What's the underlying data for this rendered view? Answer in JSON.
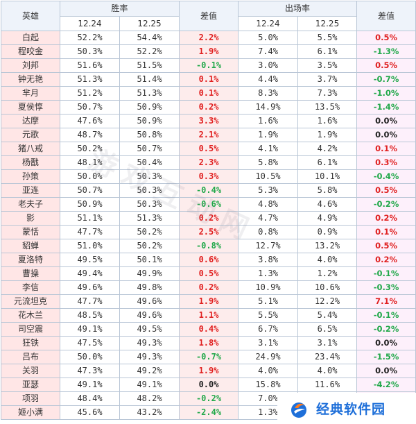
{
  "headers": {
    "hero": "英雄",
    "winrate": "胜率",
    "winrate_diff": "差值",
    "pickrate": "出场率",
    "pickrate_diff": "差值",
    "date1": "12.24",
    "date2": "12.25"
  },
  "rows": [
    {
      "name": "白起",
      "w1": "52.2%",
      "w2": "54.4%",
      "wd": "2.2%",
      "ws": "pos",
      "p1": "5.0%",
      "p2": "5.5%",
      "pd": "0.5%",
      "ps": "pos"
    },
    {
      "name": "程咬金",
      "w1": "50.3%",
      "w2": "52.2%",
      "wd": "1.9%",
      "ws": "pos",
      "p1": "7.4%",
      "p2": "6.1%",
      "pd": "-1.3%",
      "ps": "neg"
    },
    {
      "name": "刘邦",
      "w1": "51.6%",
      "w2": "51.5%",
      "wd": "-0.1%",
      "ws": "neg",
      "p1": "3.0%",
      "p2": "3.5%",
      "pd": "0.5%",
      "ps": "pos"
    },
    {
      "name": "钟无艳",
      "w1": "51.3%",
      "w2": "51.4%",
      "wd": "0.1%",
      "ws": "pos",
      "p1": "4.4%",
      "p2": "3.7%",
      "pd": "-0.7%",
      "ps": "neg"
    },
    {
      "name": "芈月",
      "w1": "51.2%",
      "w2": "51.3%",
      "wd": "0.1%",
      "ws": "pos",
      "p1": "8.3%",
      "p2": "7.3%",
      "pd": "-1.0%",
      "ps": "neg"
    },
    {
      "name": "夏侯惇",
      "w1": "50.7%",
      "w2": "50.9%",
      "wd": "0.2%",
      "ws": "pos",
      "p1": "14.9%",
      "p2": "13.5%",
      "pd": "-1.4%",
      "ps": "neg"
    },
    {
      "name": "达摩",
      "w1": "47.6%",
      "w2": "50.9%",
      "wd": "3.3%",
      "ws": "pos",
      "p1": "1.6%",
      "p2": "1.6%",
      "pd": "0.0%",
      "ps": "zero"
    },
    {
      "name": "元歌",
      "w1": "48.7%",
      "w2": "50.8%",
      "wd": "2.1%",
      "ws": "pos",
      "p1": "1.9%",
      "p2": "1.9%",
      "pd": "0.0%",
      "ps": "zero"
    },
    {
      "name": "猪八戒",
      "w1": "50.2%",
      "w2": "50.7%",
      "wd": "0.5%",
      "ws": "pos",
      "p1": "4.1%",
      "p2": "4.2%",
      "pd": "0.1%",
      "ps": "pos"
    },
    {
      "name": "杨戬",
      "w1": "48.1%",
      "w2": "50.4%",
      "wd": "2.3%",
      "ws": "pos",
      "p1": "5.8%",
      "p2": "6.1%",
      "pd": "0.3%",
      "ps": "pos"
    },
    {
      "name": "孙策",
      "w1": "50.0%",
      "w2": "50.3%",
      "wd": "0.3%",
      "ws": "pos",
      "p1": "10.5%",
      "p2": "10.1%",
      "pd": "-0.4%",
      "ps": "neg"
    },
    {
      "name": "亚连",
      "w1": "50.7%",
      "w2": "50.3%",
      "wd": "-0.4%",
      "ws": "neg",
      "p1": "5.3%",
      "p2": "5.8%",
      "pd": "0.5%",
      "ps": "pos"
    },
    {
      "name": "老夫子",
      "w1": "50.9%",
      "w2": "50.3%",
      "wd": "-0.6%",
      "ws": "neg",
      "p1": "4.8%",
      "p2": "4.6%",
      "pd": "-0.2%",
      "ps": "neg"
    },
    {
      "name": "影",
      "w1": "51.1%",
      "w2": "51.3%",
      "wd": "0.2%",
      "ws": "pos",
      "p1": "4.7%",
      "p2": "4.9%",
      "pd": "0.2%",
      "ps": "pos"
    },
    {
      "name": "蒙恬",
      "w1": "47.7%",
      "w2": "50.2%",
      "wd": "2.5%",
      "ws": "pos",
      "p1": "0.8%",
      "p2": "0.9%",
      "pd": "0.1%",
      "ps": "pos"
    },
    {
      "name": "貂蝉",
      "w1": "51.0%",
      "w2": "50.2%",
      "wd": "-0.8%",
      "ws": "neg",
      "p1": "12.7%",
      "p2": "13.2%",
      "pd": "0.5%",
      "ps": "pos"
    },
    {
      "name": "夏洛特",
      "w1": "49.5%",
      "w2": "50.1%",
      "wd": "0.6%",
      "ws": "pos",
      "p1": "3.8%",
      "p2": "4.0%",
      "pd": "0.2%",
      "ps": "pos"
    },
    {
      "name": "曹操",
      "w1": "49.4%",
      "w2": "49.9%",
      "wd": "0.5%",
      "ws": "pos",
      "p1": "1.3%",
      "p2": "1.2%",
      "pd": "-0.1%",
      "ps": "neg"
    },
    {
      "name": "李信",
      "w1": "49.6%",
      "w2": "49.8%",
      "wd": "0.2%",
      "ws": "pos",
      "p1": "10.9%",
      "p2": "10.6%",
      "pd": "-0.3%",
      "ps": "neg"
    },
    {
      "name": "元流坦克",
      "w1": "47.7%",
      "w2": "49.6%",
      "wd": "1.9%",
      "ws": "pos",
      "p1": "5.1%",
      "p2": "12.2%",
      "pd": "7.1%",
      "ps": "pos"
    },
    {
      "name": "花木兰",
      "w1": "48.5%",
      "w2": "49.6%",
      "wd": "1.1%",
      "ws": "pos",
      "p1": "5.5%",
      "p2": "5.4%",
      "pd": "-0.1%",
      "ps": "neg"
    },
    {
      "name": "司空震",
      "w1": "49.1%",
      "w2": "49.5%",
      "wd": "0.4%",
      "ws": "pos",
      "p1": "6.7%",
      "p2": "6.5%",
      "pd": "-0.2%",
      "ps": "neg"
    },
    {
      "name": "狂铁",
      "w1": "47.5%",
      "w2": "49.3%",
      "wd": "1.8%",
      "ws": "pos",
      "p1": "3.1%",
      "p2": "3.1%",
      "pd": "0.0%",
      "ps": "zero"
    },
    {
      "name": "吕布",
      "w1": "50.0%",
      "w2": "49.3%",
      "wd": "-0.7%",
      "ws": "neg",
      "p1": "24.9%",
      "p2": "23.4%",
      "pd": "-1.5%",
      "ps": "neg"
    },
    {
      "name": "关羽",
      "w1": "47.3%",
      "w2": "49.2%",
      "wd": "1.9%",
      "ws": "pos",
      "p1": "4.0%",
      "p2": "4.0%",
      "pd": "0.0%",
      "ps": "zero"
    },
    {
      "name": "亚瑟",
      "w1": "49.1%",
      "w2": "49.1%",
      "wd": "0.0%",
      "ws": "zero",
      "p1": "15.8%",
      "p2": "11.6%",
      "pd": "-4.2%",
      "ps": "neg"
    },
    {
      "name": "项羽",
      "w1": "48.4%",
      "w2": "48.2%",
      "wd": "-0.2%",
      "ws": "neg",
      "p1": "7.0%",
      "p2": "",
      "pd": "",
      "ps": "zero"
    },
    {
      "name": "姬小满",
      "w1": "45.6%",
      "w2": "43.2%",
      "wd": "-2.4%",
      "ws": "neg",
      "p1": "1.3%",
      "p2": "",
      "pd": "",
      "ps": "zero"
    }
  ],
  "watermark": "游戏互动网",
  "logo": {
    "text": "经典软件园",
    "icon": "flame-globe-icon",
    "color": "#1e6fd9",
    "accent": "#ff7a1a"
  }
}
